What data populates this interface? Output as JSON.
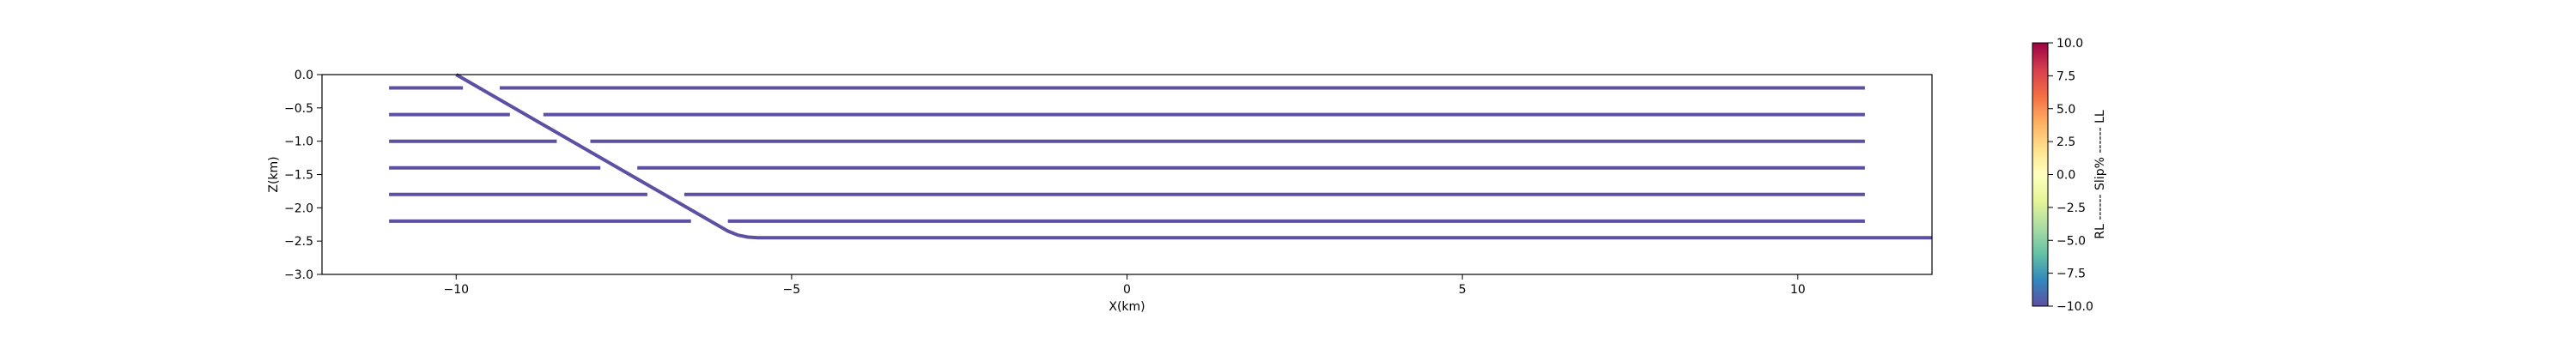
{
  "chart_data": [
    {
      "type": "line",
      "title": "",
      "xlabel": "X(km)",
      "ylabel": "Z(km)",
      "xlim": [
        -12,
        12
      ],
      "ylim": [
        -3,
        0
      ],
      "xticks": [
        -10,
        -5,
        0,
        5,
        10
      ],
      "xtick_labels": [
        "−10",
        "−5",
        "0",
        "5",
        "10"
      ],
      "yticks": [
        0,
        -0.5,
        -1,
        -1.5,
        -2,
        -2.5,
        -3
      ],
      "ytick_labels": [
        "0.0",
        "−0.5",
        "−1.0",
        "−1.5",
        "−2.0",
        "−2.5",
        "−3.0"
      ],
      "grid": false,
      "line_color": "#5e4fa2",
      "series": [
        {
          "x": [
            -11,
            -9.9
          ],
          "y": [
            -0.2,
            -0.2
          ]
        },
        {
          "x": [
            -9.35,
            11
          ],
          "y": [
            -0.2,
            -0.2
          ]
        },
        {
          "x": [
            -11,
            -9.2
          ],
          "y": [
            -0.6,
            -0.6
          ]
        },
        {
          "x": [
            -8.7,
            11
          ],
          "y": [
            -0.6,
            -0.6
          ]
        },
        {
          "x": [
            -11,
            -8.5
          ],
          "y": [
            -1.0,
            -1.0
          ]
        },
        {
          "x": [
            -8.0,
            11
          ],
          "y": [
            -1.0,
            -1.0
          ]
        },
        {
          "x": [
            -11,
            -7.85
          ],
          "y": [
            -1.4,
            -1.4
          ]
        },
        {
          "x": [
            -7.3,
            11
          ],
          "y": [
            -1.4,
            -1.4
          ]
        },
        {
          "x": [
            -11,
            -7.15
          ],
          "y": [
            -1.8,
            -1.8
          ]
        },
        {
          "x": [
            -6.6,
            11
          ],
          "y": [
            -1.8,
            -1.8
          ]
        },
        {
          "x": [
            -11,
            -6.5
          ],
          "y": [
            -2.2,
            -2.2
          ]
        },
        {
          "x": [
            -5.95,
            11
          ],
          "y": [
            -2.2,
            -2.2
          ]
        },
        {
          "x": [
            -10,
            -5.95,
            -5.8,
            -5.65,
            -5.5,
            12
          ],
          "y": [
            0.0,
            -2.35,
            -2.41,
            -2.44,
            -2.45,
            -2.45
          ]
        }
      ]
    },
    {
      "type": "colorbar",
      "label": "RL ------ Slip% ------ LL",
      "range": [
        -10,
        10
      ],
      "ticks": [
        10,
        7.5,
        5,
        2.5,
        0,
        -2.5,
        -5,
        -7.5,
        -10
      ],
      "tick_labels": [
        "10.0",
        "7.5",
        "5.0",
        "2.5",
        "0.0",
        "−2.5",
        "−5.0",
        "−7.5",
        "−10.0"
      ],
      "colormap": [
        "#5e4fa2",
        "#3288bd",
        "#66c2a5",
        "#abdda4",
        "#e6f598",
        "#ffffbf",
        "#fee08b",
        "#fdae61",
        "#f46d43",
        "#d53e4f",
        "#9e0142"
      ]
    }
  ]
}
